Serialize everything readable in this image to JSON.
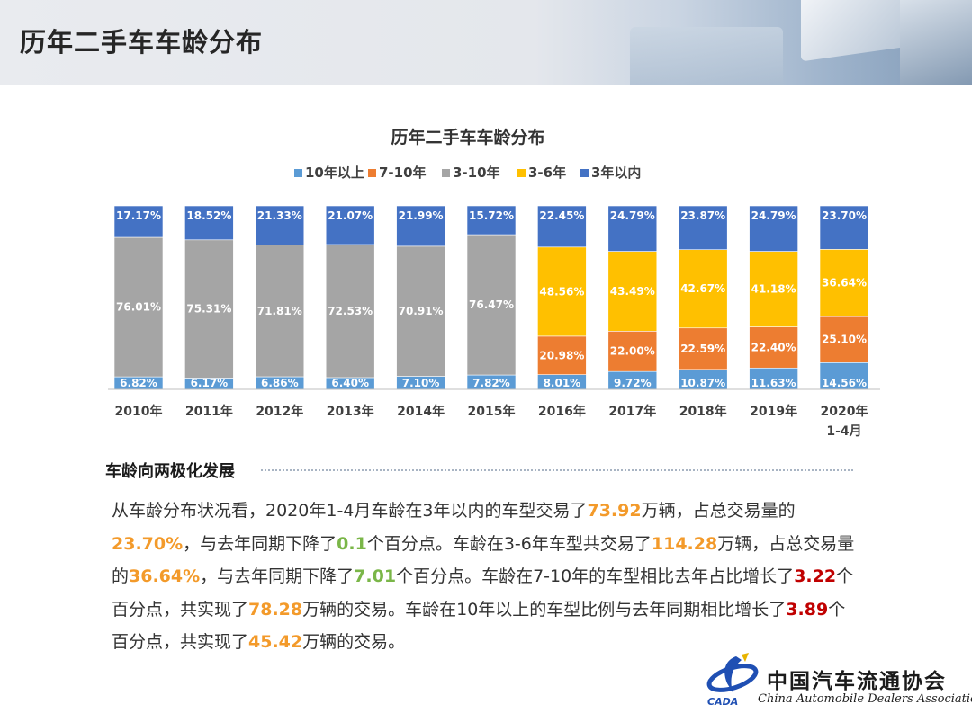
{
  "page": {
    "title": "历年二手车车龄分布"
  },
  "chart_data": {
    "type": "bar",
    "stacked": true,
    "normalized": true,
    "title": "历年二手车车龄分布",
    "legend_position": "top",
    "categories": [
      [
        "2010年"
      ],
      [
        "2011年"
      ],
      [
        "2012年"
      ],
      [
        "2013年"
      ],
      [
        "2014年"
      ],
      [
        "2015年"
      ],
      [
        "2016年"
      ],
      [
        "2017年"
      ],
      [
        "2018年"
      ],
      [
        "2019年"
      ],
      [
        "2020年",
        "1-4月"
      ]
    ],
    "series": [
      {
        "name": "10年以上",
        "color": "#5b9bd5",
        "values": [
          6.82,
          6.17,
          6.86,
          6.4,
          7.1,
          7.82,
          8.01,
          9.72,
          10.87,
          11.63,
          14.56
        ],
        "labels": [
          "6.82%",
          "6.17%",
          "6.86%",
          "6.40%",
          "7.10%",
          "7.82%",
          "8.01%",
          "9.72%",
          "10.87%",
          "11.63%",
          "14.56%"
        ]
      },
      {
        "name": "7-10年",
        "color": "#ed7d31",
        "values": [
          null,
          null,
          null,
          null,
          null,
          null,
          20.98,
          22.0,
          22.59,
          22.4,
          25.1
        ],
        "labels": [
          "",
          "",
          "",
          "",
          "",
          "",
          "20.98%",
          "22.00%",
          "22.59%",
          "22.40%",
          "25.10%"
        ]
      },
      {
        "name": "3-10年",
        "color": "#a5a5a5",
        "values": [
          76.01,
          75.31,
          71.81,
          72.53,
          70.91,
          76.47,
          null,
          null,
          null,
          null,
          null
        ],
        "labels": [
          "76.01%",
          "75.31%",
          "71.81%",
          "72.53%",
          "70.91%",
          "76.47%",
          "",
          "",
          "",
          "",
          ""
        ]
      },
      {
        "name": "3-6年",
        "color": "#ffc000",
        "values": [
          null,
          null,
          null,
          null,
          null,
          null,
          48.56,
          43.49,
          42.67,
          41.18,
          36.64
        ],
        "labels": [
          "",
          "",
          "",
          "",
          "",
          "",
          "48.56%",
          "43.49%",
          "42.67%",
          "41.18%",
          "36.64%"
        ]
      },
      {
        "name": "3年以内",
        "color": "#4472c4",
        "values": [
          17.17,
          18.52,
          21.33,
          21.07,
          21.99,
          15.72,
          22.45,
          24.79,
          23.87,
          24.79,
          23.7
        ],
        "labels": [
          "17.17%",
          "18.52%",
          "21.33%",
          "21.07%",
          "21.99%",
          "15.72%",
          "22.45%",
          "24.79%",
          "23.87%",
          "24.79%",
          "23.70%"
        ]
      }
    ],
    "ylim": [
      0,
      100
    ],
    "xlabel": "",
    "ylabel": "",
    "grid": false
  },
  "section": {
    "heading": "车龄向两极化发展"
  },
  "body": {
    "t1": "从车龄分布状况看，2020年1-4月车龄在3年以内的车型交易了",
    "v1": "73.92",
    "t2": "万辆，占总交易量的",
    "v2": "23.70%",
    "t3": "，与去年同期下降了",
    "v3": "0.1",
    "t4": "个百分点。车龄在3-6年车型共交易了",
    "v4": "114.28",
    "t5": "万辆，占总交易量的",
    "v5": "36.64%",
    "t6": "，与去年同期下降了",
    "v6": "7.01",
    "t7": "个百分点。车龄在7-10年的车型相比去年占比增长了",
    "v7": "3.22",
    "t8": "个百分点，共实现了",
    "v8": "78.28",
    "t9": "万辆的交易。车龄在10年以上的车型比例与去年同期相比增长了",
    "v9": "3.89",
    "t10": "个百分点，共实现了",
    "v10": "45.42",
    "t11": "万辆的交易。"
  },
  "logo": {
    "cn": "中国汽车流通协会",
    "en": "China Automobile Dealers Association",
    "abbr": "CADA",
    "colors": {
      "primary": "#1f4fb3",
      "accent": "#e8b400"
    }
  },
  "colors": {
    "highlight_orange": "#f39a2a",
    "highlight_green": "#7ab648",
    "highlight_red": "#c00000"
  }
}
